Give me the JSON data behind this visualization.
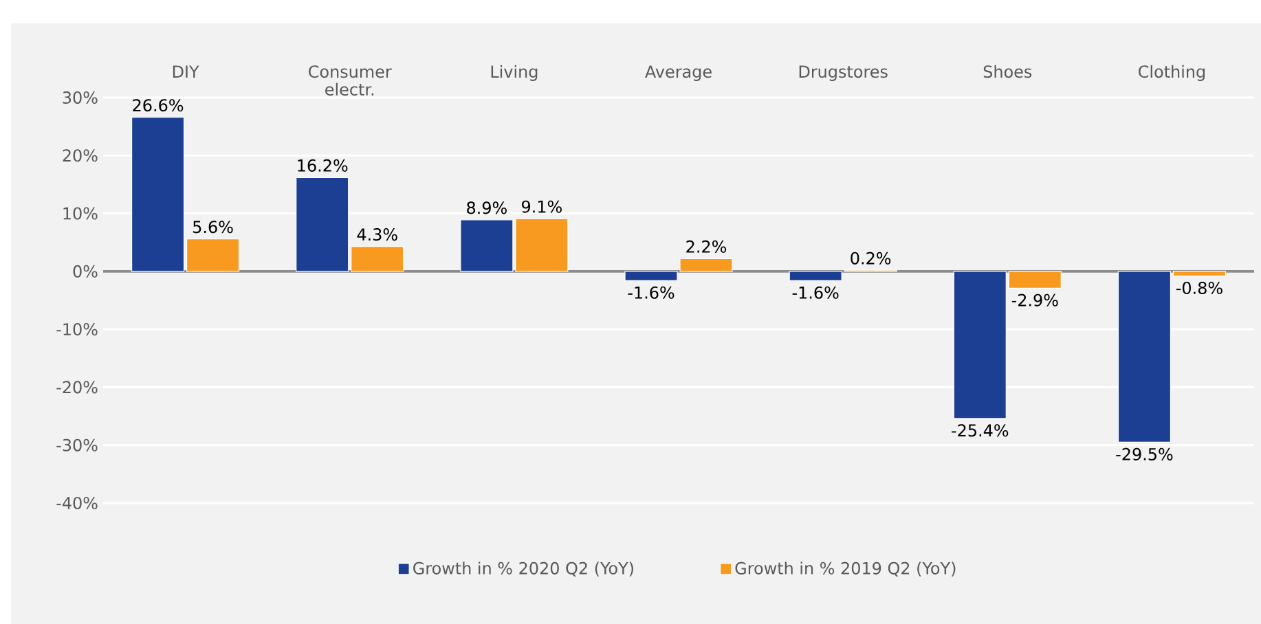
{
  "chart_data": {
    "type": "bar",
    "categories": [
      "DIY",
      "Consumer electr.",
      "Living",
      "Average",
      "Drugstores",
      "Shoes",
      "Clothing"
    ],
    "series": [
      {
        "name": "Growth in % 2020 Q2 (YoY)",
        "color": "#1c3f94",
        "values": [
          26.6,
          16.2,
          8.9,
          -1.6,
          -1.6,
          -25.4,
          -29.5
        ],
        "value_labels": [
          "26.6%",
          "16.2%",
          "8.9%",
          "-1.6%",
          "-1.6%",
          "-25.4%",
          "-29.5%"
        ]
      },
      {
        "name": "Growth in % 2019 Q2 (YoY)",
        "color": "#f79a1f",
        "values": [
          5.6,
          4.3,
          9.1,
          2.2,
          0.2,
          -2.9,
          -0.8
        ],
        "value_labels": [
          "5.6%",
          "4.3%",
          "9.1%",
          "2.2%",
          "0.2%",
          "-2.9%",
          "-0.8%"
        ]
      }
    ],
    "ylim": [
      -40,
      30
    ],
    "yticks": [
      {
        "value": -40,
        "label": "-40%"
      },
      {
        "value": -30,
        "label": "-30%"
      },
      {
        "value": -20,
        "label": "-20%"
      },
      {
        "value": -10,
        "label": "-10%"
      },
      {
        "value": 0,
        "label": "0%"
      },
      {
        "value": 10,
        "label": "10%"
      },
      {
        "value": 20,
        "label": "20%"
      },
      {
        "value": 30,
        "label": "30%"
      }
    ],
    "grid": "y",
    "legend": "bottom"
  }
}
